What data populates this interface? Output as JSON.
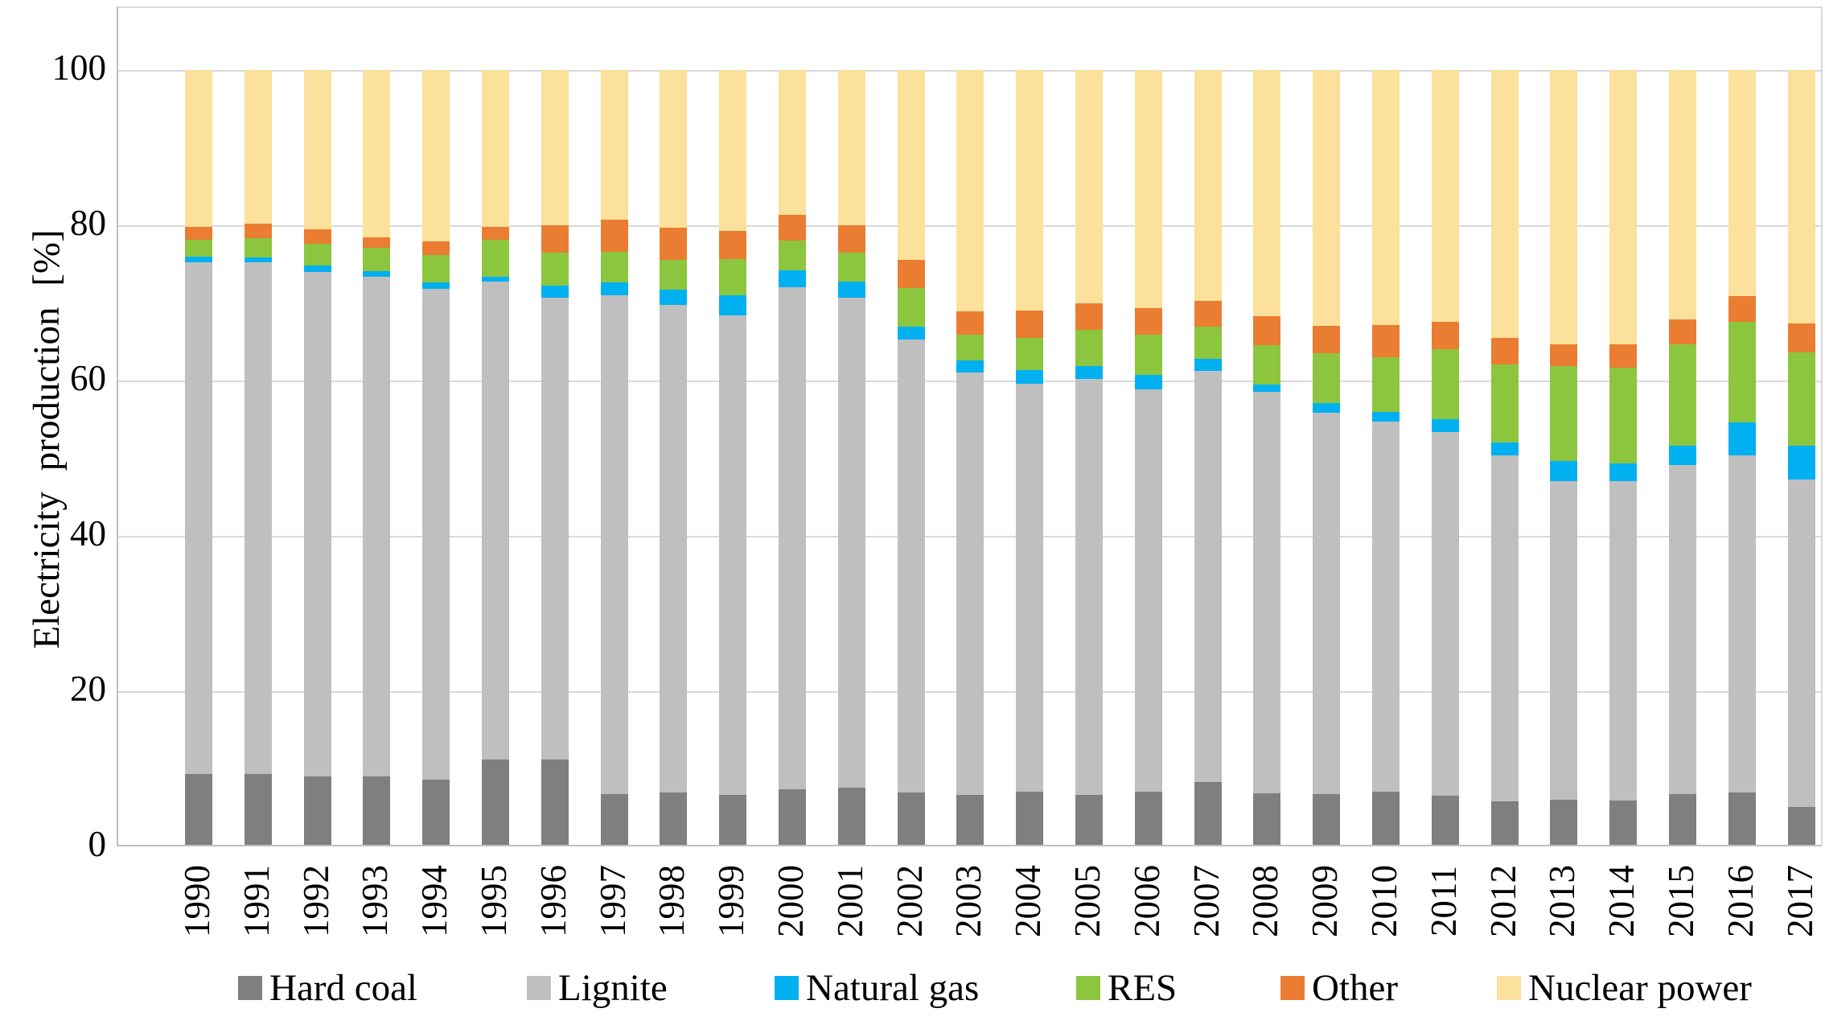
{
  "colors": {
    "background": "#FFFFFF",
    "gridline": "#D9D9D9",
    "axis": "#BFBFBF",
    "text": "#000000"
  },
  "chart_data": {
    "type": "bar",
    "stacked": true,
    "orientation": "vertical",
    "title": "",
    "xlabel": "",
    "ylabel": "Electricity production [%]",
    "ylim": [
      0,
      100
    ],
    "yticks": [
      0,
      20,
      40,
      60,
      80,
      100
    ],
    "grid": "horizontal",
    "legend_position": "bottom",
    "categories": [
      "1990",
      "1991",
      "1992",
      "1993",
      "1994",
      "1995",
      "1996",
      "1997",
      "1998",
      "1999",
      "2000",
      "2001",
      "2002",
      "2003",
      "2004",
      "2005",
      "2006",
      "2007",
      "2008",
      "2009",
      "2010",
      "2011",
      "2012",
      "2013",
      "2014",
      "2015",
      "2016",
      "2017"
    ],
    "series": [
      {
        "name": "Hard coal",
        "color": "#7F7F7F",
        "values": [
          9.3,
          9.3,
          9.0,
          9.0,
          8.6,
          11.2,
          11.2,
          6.7,
          6.9,
          6.6,
          7.4,
          7.6,
          6.9,
          6.6,
          7.0,
          6.6,
          7.0,
          8.3,
          6.8,
          6.7,
          7.0,
          6.5,
          5.8,
          6.0,
          5.9,
          6.7,
          6.9,
          5.1
        ]
      },
      {
        "name": "Lignite",
        "color": "#BFBFBF",
        "values": [
          65.9,
          65.9,
          65.0,
          64.4,
          63.2,
          61.5,
          59.5,
          64.3,
          62.8,
          61.8,
          64.6,
          63.1,
          58.4,
          54.4,
          52.6,
          53.6,
          51.9,
          52.9,
          51.8,
          49.2,
          47.7,
          46.9,
          44.6,
          41.1,
          41.2,
          42.4,
          43.5,
          42.2
        ]
      },
      {
        "name": "Natural gas",
        "color": "#00B0F0",
        "values": [
          0.8,
          0.7,
          0.8,
          0.7,
          0.8,
          0.7,
          1.5,
          1.6,
          2.0,
          2.6,
          2.2,
          2.0,
          1.6,
          1.6,
          1.8,
          1.7,
          1.8,
          1.6,
          0.9,
          1.2,
          1.3,
          1.6,
          1.6,
          2.5,
          2.2,
          2.5,
          4.2,
          4.3
        ]
      },
      {
        "name": "RES",
        "color": "#8CC63F",
        "values": [
          2.1,
          2.4,
          2.8,
          3.0,
          3.6,
          4.7,
          4.3,
          4.0,
          3.8,
          4.6,
          3.8,
          3.8,
          5.0,
          3.3,
          4.1,
          4.6,
          5.2,
          4.1,
          5.1,
          6.4,
          7.0,
          9.0,
          10.1,
          12.3,
          12.4,
          13.1,
          13.0,
          12.0
        ]
      },
      {
        "name": "Other",
        "color": "#EA7D31",
        "values": [
          1.7,
          1.9,
          1.9,
          1.3,
          1.7,
          1.7,
          3.5,
          4.1,
          4.2,
          3.7,
          3.3,
          3.5,
          3.6,
          3.0,
          3.5,
          3.5,
          3.4,
          3.4,
          3.7,
          3.6,
          4.2,
          3.6,
          3.4,
          2.8,
          3.0,
          3.2,
          3.3,
          3.8
        ]
      },
      {
        "name": "Nuclear power",
        "color": "#FBE19B",
        "values": [
          20.2,
          19.8,
          20.5,
          21.6,
          22.1,
          20.2,
          20.0,
          19.3,
          20.3,
          20.7,
          18.7,
          20.0,
          24.5,
          31.1,
          31.0,
          30.0,
          30.7,
          29.7,
          31.7,
          32.9,
          32.8,
          32.4,
          34.5,
          35.3,
          35.3,
          32.1,
          29.1,
          32.6
        ]
      }
    ]
  }
}
